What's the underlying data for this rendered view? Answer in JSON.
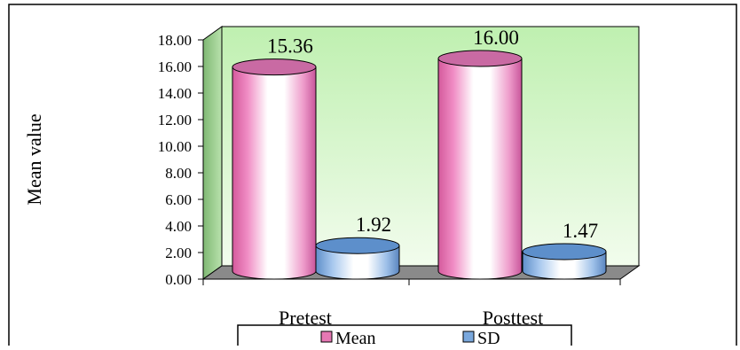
{
  "chart_data": {
    "type": "bar",
    "categories": [
      "Pretest",
      "Posttest"
    ],
    "series": [
      {
        "name": "Mean",
        "values": [
          15.36,
          16.0
        ],
        "labels": [
          "15.36",
          "16.00"
        ]
      },
      {
        "name": "SD",
        "values": [
          1.92,
          1.47
        ],
        "labels": [
          "1.92",
          "1.47"
        ]
      }
    ],
    "ylabel": "Mean value",
    "xlabel": "",
    "ylim": [
      0,
      18
    ],
    "yticks": [
      "0.00",
      "2.00",
      "4.00",
      "6.00",
      "8.00",
      "10.00",
      "12.00",
      "14.00",
      "16.00",
      "18.00"
    ],
    "style": "3d-cylinder",
    "legend_position": "bottom",
    "colors": {
      "Mean": "#e678b4",
      "SD": "#7aa8dd",
      "back_wall": "#d8f5cc",
      "side_wall": "#9bc98f",
      "floor": "#8a8a8a"
    }
  }
}
